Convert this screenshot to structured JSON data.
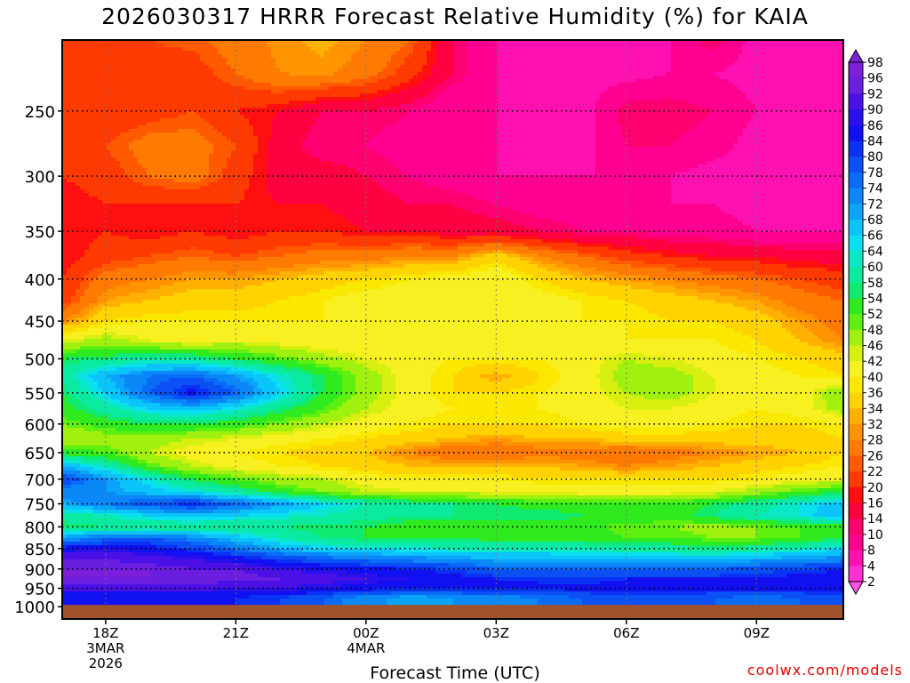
{
  "chart_data": {
    "type": "heatmap",
    "title": "2026030317 HRRR Forecast Relative Humidity (%) for KAIA",
    "xlabel": "Forecast Time (UTC)",
    "ylabel": "",
    "credit": "coolwx.com/models",
    "x_ticks": [
      {
        "hour": 18,
        "lines": [
          "18Z",
          "3MAR",
          "2026"
        ]
      },
      {
        "hour": 21,
        "lines": [
          "21Z"
        ]
      },
      {
        "hour": 24,
        "lines": [
          "00Z",
          "4MAR"
        ]
      },
      {
        "hour": 27,
        "lines": [
          "03Z"
        ]
      },
      {
        "hour": 30,
        "lines": [
          "06Z"
        ]
      },
      {
        "hour": 33,
        "lines": [
          "09Z"
        ]
      }
    ],
    "xlim": [
      17,
      35
    ],
    "y_ticks": [
      250,
      300,
      350,
      400,
      450,
      500,
      550,
      600,
      650,
      700,
      750,
      800,
      850,
      900,
      950,
      1000
    ],
    "ylim": [
      1035,
      205
    ],
    "y_scale": "log (pressure, hPa)",
    "grid": true,
    "ground": {
      "color": "#a0522d",
      "below_hpa": 1000
    },
    "colorbar": {
      "labels": [
        98,
        96,
        92,
        90,
        86,
        84,
        80,
        78,
        74,
        72,
        68,
        66,
        64,
        60,
        58,
        54,
        52,
        48,
        46,
        42,
        40,
        36,
        34,
        32,
        28,
        26,
        22,
        20,
        16,
        14,
        10,
        8,
        4,
        2
      ],
      "colors": [
        "#7b1fd9",
        "#6a1fe0",
        "#4b10e6",
        "#2a10ea",
        "#1010f0",
        "#0a32f4",
        "#0a50f4",
        "#0a6cf6",
        "#0a88f8",
        "#0aa4fa",
        "#0ac4fa",
        "#0ae0f0",
        "#0ae8c8",
        "#0aeaa0",
        "#10ea70",
        "#30ea20",
        "#60f010",
        "#a0f010",
        "#d8f010",
        "#f8f020",
        "#fae800",
        "#ffd200",
        "#ffb000",
        "#ff9400",
        "#ff7a00",
        "#ff5a00",
        "#ff3a00",
        "#ff1010",
        "#ff0040",
        "#ff0070",
        "#ff0090",
        "#ff10b0",
        "#ff30d0",
        "#ff50e8"
      ]
    },
    "x": [
      17,
      18,
      19,
      20,
      21,
      22,
      23,
      24,
      25,
      26,
      27,
      28,
      29,
      30,
      31,
      32,
      33,
      34,
      35
    ],
    "levels": [
      205,
      225,
      250,
      275,
      300,
      325,
      350,
      375,
      400,
      425,
      450,
      475,
      500,
      525,
      550,
      575,
      600,
      625,
      650,
      675,
      700,
      725,
      750,
      775,
      800,
      825,
      850,
      875,
      900,
      925,
      950,
      975
    ],
    "values": [
      [
        26,
        26,
        26,
        27,
        30,
        33,
        35,
        32,
        28,
        16,
        10,
        8,
        8,
        10,
        10,
        16,
        8,
        8,
        8
      ],
      [
        22,
        24,
        24,
        24,
        28,
        32,
        33,
        30,
        24,
        16,
        10,
        8,
        8,
        8,
        10,
        10,
        8,
        8,
        8
      ],
      [
        24,
        22,
        24,
        26,
        22,
        20,
        16,
        16,
        14,
        10,
        10,
        8,
        8,
        16,
        16,
        14,
        10,
        8,
        8
      ],
      [
        26,
        26,
        30,
        30,
        26,
        18,
        14,
        14,
        12,
        10,
        10,
        8,
        8,
        14,
        14,
        12,
        8,
        8,
        8
      ],
      [
        22,
        24,
        28,
        30,
        24,
        18,
        18,
        16,
        14,
        12,
        10,
        10,
        10,
        10,
        10,
        8,
        8,
        8,
        8
      ],
      [
        20,
        22,
        22,
        22,
        22,
        20,
        20,
        18,
        16,
        16,
        14,
        12,
        12,
        10,
        10,
        10,
        8,
        8,
        8
      ],
      [
        20,
        22,
        20,
        22,
        20,
        22,
        22,
        20,
        20,
        18,
        18,
        16,
        14,
        14,
        12,
        12,
        10,
        10,
        10
      ],
      [
        20,
        24,
        26,
        28,
        26,
        28,
        30,
        30,
        32,
        32,
        38,
        32,
        28,
        24,
        22,
        20,
        20,
        18,
        18
      ],
      [
        22,
        30,
        32,
        34,
        34,
        36,
        38,
        40,
        42,
        44,
        46,
        40,
        36,
        34,
        32,
        30,
        28,
        26,
        24
      ],
      [
        24,
        34,
        36,
        38,
        38,
        40,
        42,
        44,
        44,
        46,
        46,
        44,
        42,
        40,
        38,
        36,
        34,
        30,
        28
      ],
      [
        32,
        40,
        42,
        42,
        42,
        42,
        42,
        42,
        42,
        42,
        42,
        42,
        42,
        42,
        40,
        40,
        38,
        34,
        30
      ],
      [
        46,
        50,
        46,
        44,
        46,
        44,
        42,
        42,
        42,
        42,
        42,
        42,
        42,
        42,
        42,
        42,
        40,
        36,
        32
      ],
      [
        58,
        60,
        62,
        62,
        58,
        54,
        50,
        46,
        44,
        42,
        42,
        42,
        44,
        48,
        46,
        44,
        42,
        40,
        38
      ],
      [
        62,
        72,
        78,
        80,
        74,
        66,
        58,
        50,
        44,
        40,
        34,
        40,
        44,
        50,
        50,
        46,
        44,
        42,
        40
      ],
      [
        58,
        68,
        80,
        88,
        80,
        68,
        58,
        50,
        44,
        40,
        40,
        42,
        44,
        48,
        50,
        46,
        44,
        44,
        52
      ],
      [
        56,
        62,
        68,
        70,
        66,
        60,
        54,
        48,
        44,
        42,
        42,
        42,
        44,
        46,
        46,
        44,
        42,
        44,
        50
      ],
      [
        52,
        56,
        58,
        58,
        56,
        52,
        48,
        44,
        42,
        40,
        40,
        40,
        42,
        44,
        44,
        42,
        40,
        40,
        42
      ],
      [
        48,
        50,
        50,
        48,
        46,
        44,
        42,
        40,
        38,
        36,
        34,
        36,
        36,
        38,
        38,
        38,
        38,
        38,
        40
      ],
      [
        56,
        54,
        48,
        44,
        42,
        40,
        38,
        36,
        32,
        28,
        28,
        30,
        30,
        28,
        30,
        32,
        34,
        36,
        40
      ],
      [
        72,
        64,
        54,
        48,
        44,
        42,
        40,
        38,
        36,
        36,
        36,
        36,
        34,
        32,
        34,
        36,
        38,
        40,
        42
      ],
      [
        84,
        74,
        66,
        58,
        54,
        50,
        48,
        44,
        42,
        42,
        42,
        40,
        40,
        40,
        40,
        40,
        42,
        44,
        46
      ],
      [
        76,
        74,
        70,
        66,
        62,
        56,
        52,
        48,
        46,
        46,
        46,
        46,
        44,
        44,
        44,
        46,
        50,
        54,
        58
      ],
      [
        72,
        78,
        82,
        86,
        80,
        74,
        68,
        64,
        62,
        60,
        58,
        56,
        56,
        56,
        56,
        58,
        62,
        66,
        70
      ],
      [
        62,
        64,
        68,
        70,
        68,
        66,
        64,
        62,
        60,
        60,
        60,
        60,
        58,
        58,
        56,
        60,
        64,
        66,
        72
      ],
      [
        58,
        60,
        60,
        60,
        60,
        60,
        58,
        58,
        56,
        56,
        56,
        56,
        56,
        52,
        52,
        50,
        52,
        54,
        56
      ],
      [
        74,
        78,
        80,
        76,
        70,
        64,
        60,
        58,
        58,
        58,
        56,
        56,
        56,
        54,
        54,
        52,
        52,
        54,
        58
      ],
      [
        88,
        90,
        88,
        84,
        78,
        72,
        68,
        66,
        66,
        64,
        64,
        64,
        64,
        62,
        62,
        60,
        62,
        64,
        68
      ],
      [
        96,
        96,
        94,
        92,
        88,
        84,
        80,
        78,
        76,
        74,
        72,
        72,
        70,
        70,
        70,
        70,
        72,
        74,
        76
      ],
      [
        98,
        98,
        98,
        96,
        96,
        92,
        90,
        88,
        86,
        84,
        80,
        80,
        80,
        80,
        80,
        80,
        82,
        84,
        86
      ],
      [
        98,
        98,
        98,
        98,
        98,
        96,
        94,
        92,
        90,
        88,
        86,
        86,
        84,
        86,
        86,
        86,
        86,
        88,
        88
      ],
      [
        94,
        94,
        94,
        94,
        92,
        92,
        90,
        88,
        86,
        86,
        86,
        86,
        88,
        88,
        88,
        88,
        88,
        88,
        90
      ],
      [
        86,
        86,
        86,
        86,
        86,
        84,
        80,
        76,
        72,
        74,
        76,
        78,
        80,
        82,
        82,
        80,
        78,
        80,
        82
      ]
    ]
  }
}
